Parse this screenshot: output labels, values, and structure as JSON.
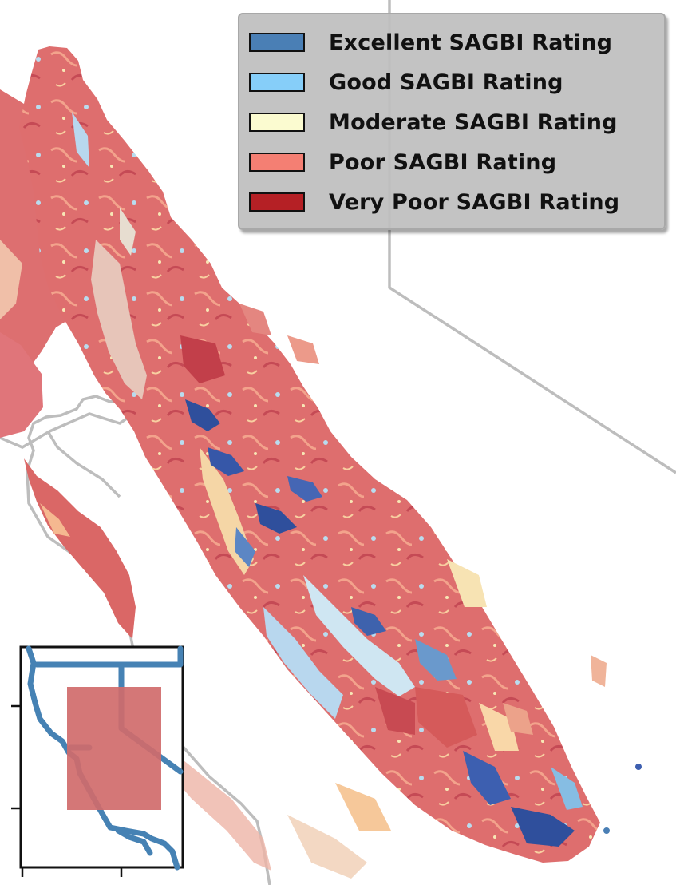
{
  "legend": {
    "items": [
      {
        "label": "Excellent SAGBI Rating",
        "color": "#4a7fb5"
      },
      {
        "label": "Good SAGBI Rating",
        "color": "#86cef9"
      },
      {
        "label": "Moderate SAGBI Rating",
        "color": "#fbfbd0"
      },
      {
        "label": "Poor SAGBI Rating",
        "color": "#f47f73"
      },
      {
        "label": "Very Poor SAGBI Rating",
        "color": "#b52025"
      }
    ]
  },
  "map": {
    "border_color": "#bdbdbd",
    "background_color": "#ffffff",
    "dominant_fill": "#de6e6e"
  },
  "inset": {
    "outline_color": "#4682b4",
    "extent_color": "#d06b6b"
  }
}
